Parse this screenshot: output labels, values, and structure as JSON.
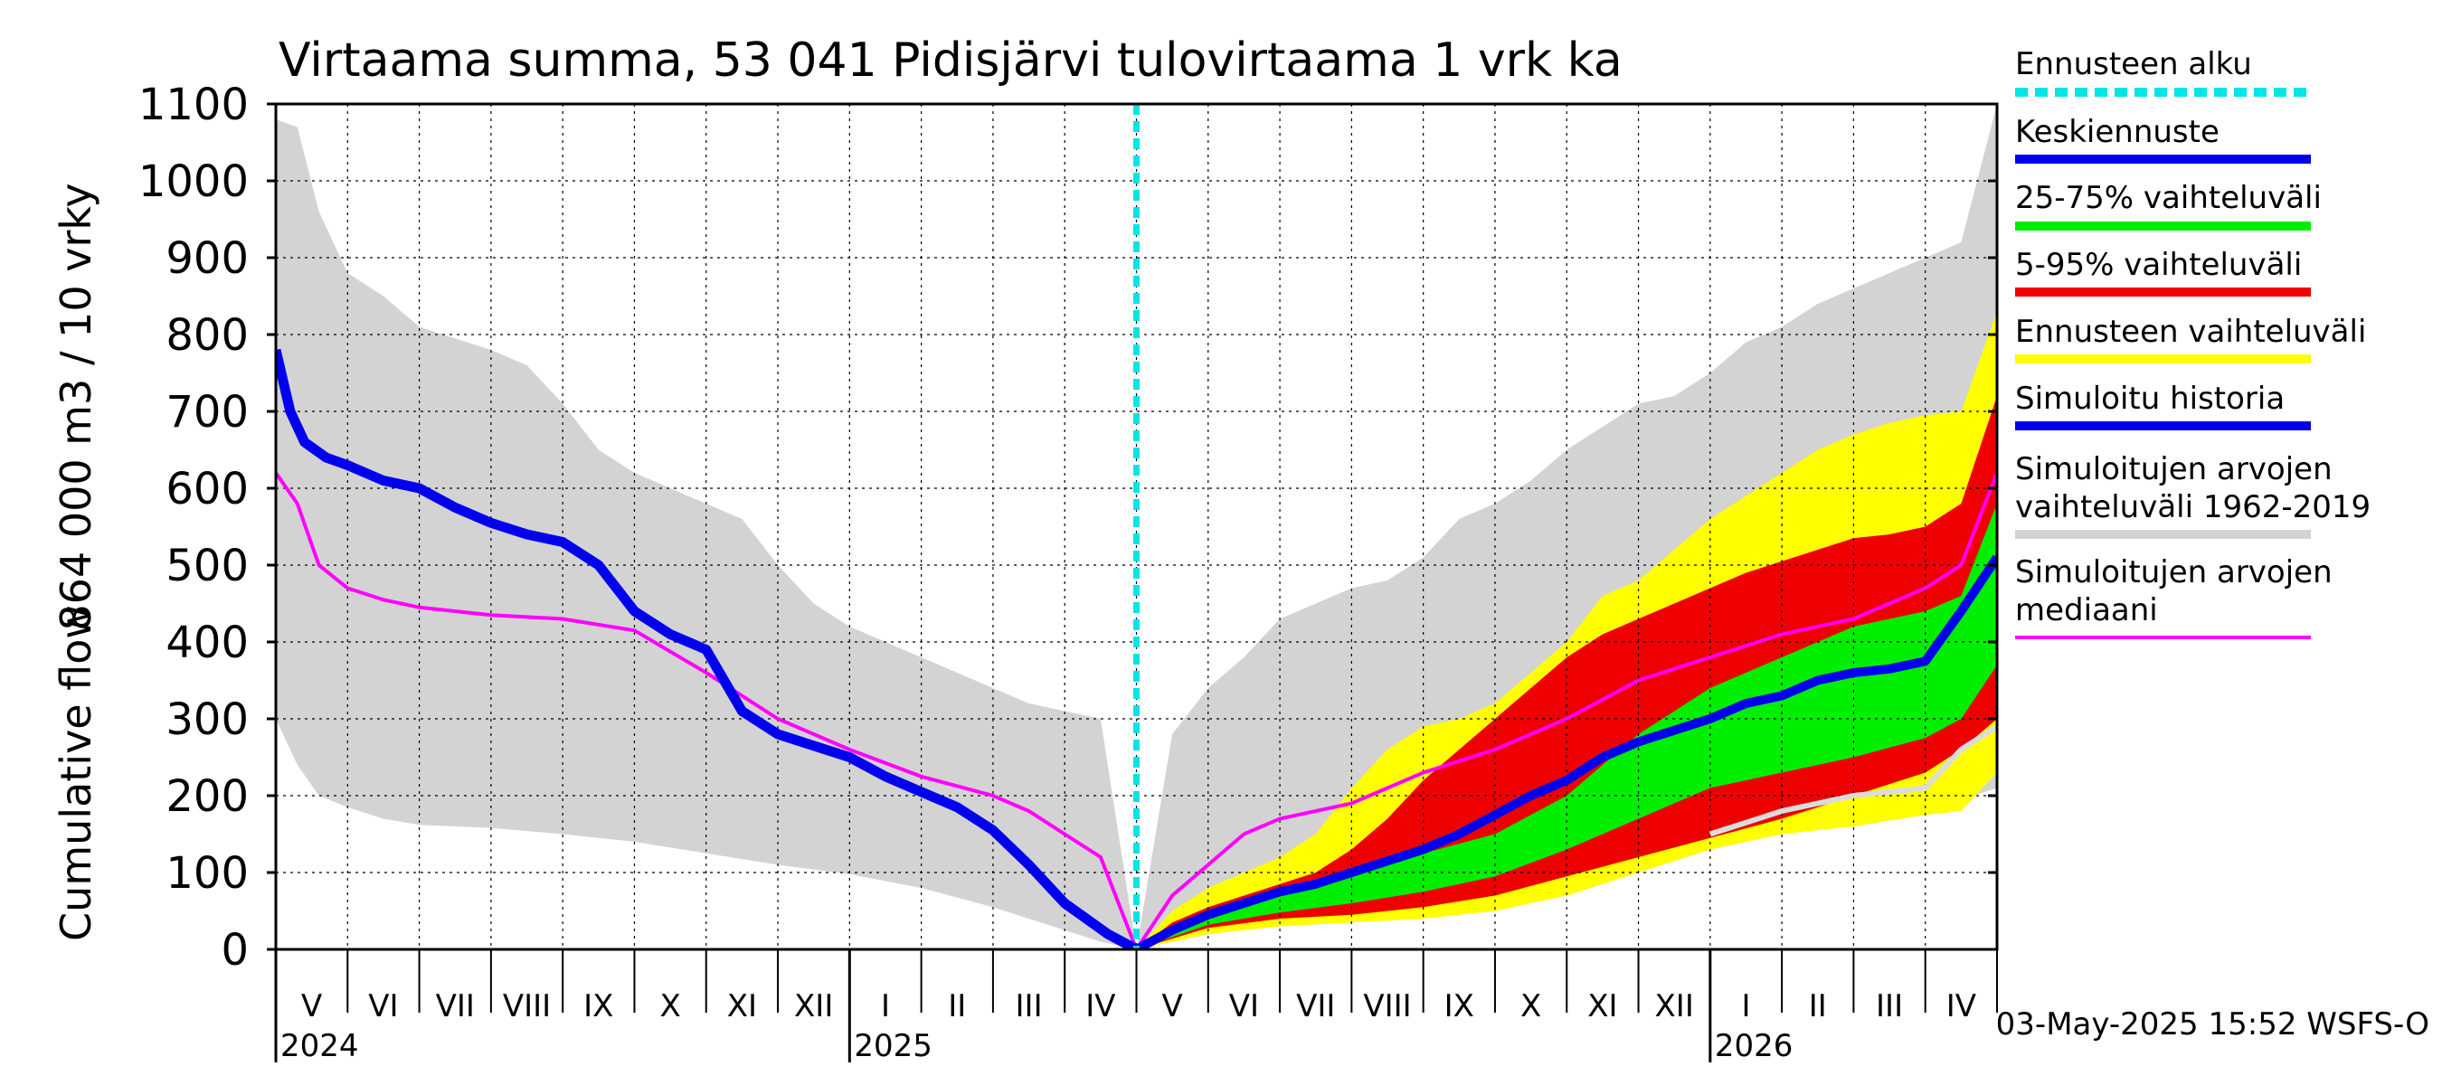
{
  "chart_data": {
    "type": "area",
    "title": "Virtaama summa, 53 041 Pidisjärvi tulovirtaama 1 vrk ka",
    "ylabel_line1": "864 000 m3 / 10 vrky",
    "ylabel_line2": "Cumulative flow",
    "ylim": [
      0,
      1100
    ],
    "yticks": [
      0,
      100,
      200,
      300,
      400,
      500,
      600,
      700,
      800,
      900,
      1000,
      1100
    ],
    "xlim_months": [
      0,
      24
    ],
    "month_labels": [
      "V",
      "VI",
      "VII",
      "VIII",
      "IX",
      "X",
      "XI",
      "XII",
      "I",
      "II",
      "III",
      "IV",
      "V",
      "VI",
      "VII",
      "VIII",
      "IX",
      "X",
      "XI",
      "XII",
      "I",
      "II",
      "III",
      "IV"
    ],
    "year_labels": [
      {
        "label": "2024",
        "month": 0
      },
      {
        "label": "2025",
        "month": 8
      },
      {
        "label": "2026",
        "month": 20
      }
    ],
    "forecast_start_month": 12,
    "footer": "03-May-2025 15:52 WSFS-O",
    "colors": {
      "forecast_start": "#00e5e5",
      "mean_forecast": "#0000ee",
      "band_25_75": "#00ee00",
      "band_5_95": "#ee0000",
      "forecast_range": "#ffff00",
      "sim_history": "#0000ee",
      "sim_range": "#d3d3d3",
      "sim_median": "#ff00ff",
      "sim_1962_2019_light": "#dcdcdc"
    },
    "series": [
      {
        "name": "sim_range_upper",
        "x": [
          0,
          0.3,
          0.6,
          1,
          1.5,
          2,
          2.5,
          3,
          3.5,
          4,
          4.5,
          5,
          5.5,
          6,
          6.5,
          7,
          7.5,
          8,
          8.5,
          9,
          9.5,
          10,
          10.5,
          11,
          11.5,
          12,
          12.5,
          13,
          13.5,
          14,
          14.5,
          15,
          15.5,
          16,
          16.5,
          17,
          17.5,
          18,
          18.5,
          19,
          19.5,
          20,
          20.5,
          21,
          21.5,
          22,
          22.5,
          23,
          23.5,
          24
        ],
        "values": [
          1080,
          1070,
          960,
          880,
          850,
          810,
          795,
          780,
          760,
          710,
          650,
          620,
          600,
          580,
          560,
          500,
          450,
          420,
          400,
          380,
          360,
          340,
          320,
          310,
          300,
          0,
          280,
          340,
          380,
          430,
          450,
          470,
          480,
          510,
          560,
          580,
          610,
          650,
          680,
          710,
          720,
          750,
          790,
          810,
          840,
          860,
          880,
          900,
          920,
          1100
        ]
      },
      {
        "name": "sim_range_lower",
        "x": [
          0,
          0.3,
          0.6,
          1,
          1.5,
          2,
          3,
          4,
          5,
          6,
          7,
          8,
          9,
          10,
          11,
          11.5,
          12,
          13,
          14,
          15,
          16,
          17,
          18,
          19,
          20,
          21,
          22,
          23,
          23.5,
          24
        ],
        "values": [
          300,
          240,
          200,
          185,
          170,
          162,
          158,
          150,
          140,
          125,
          110,
          98,
          80,
          55,
          25,
          10,
          0,
          20,
          30,
          40,
          60,
          75,
          100,
          120,
          140,
          160,
          170,
          185,
          195,
          210
        ]
      },
      {
        "name": "forecast_range_upper",
        "x": [
          12,
          12.5,
          13,
          13.5,
          14,
          14.5,
          15,
          15.5,
          16,
          16.5,
          17,
          17.5,
          18,
          18.5,
          19,
          19.5,
          20,
          20.5,
          21,
          21.5,
          22,
          22.5,
          23,
          23.5,
          24
        ],
        "values": [
          0,
          50,
          80,
          100,
          120,
          150,
          210,
          260,
          290,
          300,
          320,
          360,
          400,
          460,
          480,
          520,
          560,
          590,
          620,
          650,
          670,
          685,
          695,
          700,
          830
        ]
      },
      {
        "name": "forecast_range_lower",
        "x": [
          12,
          13,
          14,
          15,
          16,
          17,
          18,
          19,
          20,
          21,
          22,
          23,
          23.5,
          24
        ],
        "values": [
          0,
          20,
          30,
          35,
          40,
          50,
          70,
          100,
          130,
          150,
          160,
          175,
          180,
          230
        ]
      },
      {
        "name": "band_5_95_upper",
        "x": [
          12,
          12.5,
          13,
          13.5,
          14,
          14.5,
          15,
          15.5,
          16,
          16.5,
          17,
          17.5,
          18,
          18.5,
          19,
          19.5,
          20,
          20.5,
          21,
          21.5,
          22,
          22.5,
          23,
          23.5,
          24
        ],
        "values": [
          0,
          35,
          55,
          70,
          85,
          100,
          130,
          170,
          220,
          260,
          300,
          340,
          380,
          410,
          430,
          450,
          470,
          490,
          505,
          520,
          535,
          540,
          550,
          580,
          720
        ]
      },
      {
        "name": "band_5_95_lower",
        "x": [
          12,
          13,
          14,
          15,
          16,
          17,
          18,
          19,
          20,
          21,
          22,
          23,
          23.5,
          24
        ],
        "values": [
          0,
          28,
          40,
          45,
          55,
          70,
          95,
          120,
          145,
          170,
          200,
          230,
          260,
          300
        ]
      },
      {
        "name": "band_25_75_upper",
        "x": [
          12,
          13,
          14,
          15,
          16,
          17,
          18,
          18.5,
          19,
          19.5,
          20,
          20.5,
          21,
          21.5,
          22,
          22.5,
          23,
          23.5,
          24
        ],
        "values": [
          0,
          45,
          75,
          100,
          125,
          150,
          200,
          240,
          280,
          310,
          340,
          360,
          380,
          400,
          420,
          430,
          440,
          460,
          580
        ]
      },
      {
        "name": "band_25_75_lower",
        "x": [
          12,
          13,
          14,
          15,
          16,
          17,
          18,
          19,
          20,
          21,
          22,
          23,
          23.5,
          24
        ],
        "values": [
          0,
          32,
          48,
          60,
          75,
          95,
          130,
          170,
          210,
          230,
          250,
          275,
          300,
          370
        ]
      },
      {
        "name": "sim_median",
        "x": [
          0,
          0.3,
          0.6,
          1,
          1.5,
          2,
          3,
          4,
          5,
          6,
          7,
          8,
          9,
          10,
          10.5,
          11,
          11.5,
          12,
          12.5,
          13,
          13.5,
          14,
          15,
          16,
          17,
          18,
          19,
          20,
          21,
          22,
          23,
          23.5,
          24
        ],
        "values": [
          620,
          580,
          500,
          470,
          455,
          445,
          435,
          430,
          415,
          360,
          300,
          260,
          225,
          200,
          180,
          150,
          120,
          0,
          70,
          110,
          150,
          170,
          190,
          230,
          260,
          300,
          350,
          380,
          410,
          430,
          470,
          500,
          620
        ]
      },
      {
        "name": "sim_1962_2019_median_light",
        "x": [
          20,
          20.5,
          21,
          21.5,
          22,
          22.5,
          23,
          23.5,
          24
        ],
        "values": [
          150,
          165,
          180,
          190,
          200,
          205,
          210,
          260,
          290
        ]
      },
      {
        "name": "sim_history",
        "x": [
          0,
          0.2,
          0.4,
          0.7,
          1,
          1.5,
          2,
          2.5,
          3,
          3.5,
          4,
          4.5,
          5,
          5.5,
          6,
          6.5,
          7,
          7.5,
          8,
          8.5,
          9,
          9.5,
          10,
          10.5,
          11,
          11.3,
          11.6,
          12
        ],
        "values": [
          780,
          700,
          660,
          640,
          630,
          610,
          600,
          575,
          555,
          540,
          530,
          500,
          440,
          410,
          390,
          310,
          280,
          265,
          250,
          225,
          205,
          185,
          155,
          110,
          60,
          40,
          20,
          0
        ]
      },
      {
        "name": "mean_forecast",
        "x": [
          12,
          12.5,
          13,
          13.5,
          14,
          14.5,
          15,
          15.5,
          16,
          16.5,
          17,
          17.5,
          18,
          18.5,
          19,
          19.5,
          20,
          20.5,
          21,
          21.5,
          22,
          22.5,
          23,
          23.5,
          24
        ],
        "values": [
          0,
          25,
          45,
          60,
          75,
          85,
          100,
          115,
          130,
          150,
          175,
          200,
          220,
          250,
          270,
          285,
          300,
          320,
          330,
          350,
          360,
          365,
          375,
          440,
          510
        ]
      }
    ],
    "legend": [
      {
        "label": "Ennusteen alku",
        "style": "dashed",
        "color_key": "forecast_start"
      },
      {
        "label": "Keskiennuste",
        "style": "solid",
        "color_key": "mean_forecast"
      },
      {
        "label": "25-75% vaihteluväli",
        "style": "solid",
        "color_key": "band_25_75"
      },
      {
        "label": "5-95% vaihteluväli",
        "style": "solid",
        "color_key": "band_5_95"
      },
      {
        "label": "Ennusteen vaihteluväli",
        "style": "solid",
        "color_key": "forecast_range"
      },
      {
        "label": "Simuloitu historia",
        "style": "solid",
        "color_key": "sim_history"
      },
      {
        "label": "Simuloitujen arvojen",
        "label2": "vaihteluväli 1962-2019",
        "style": "solid",
        "color_key": "sim_range"
      },
      {
        "label": "Simuloitujen arvojen",
        "label2": "mediaani",
        "style": "solid",
        "color_key": "sim_median"
      }
    ]
  }
}
